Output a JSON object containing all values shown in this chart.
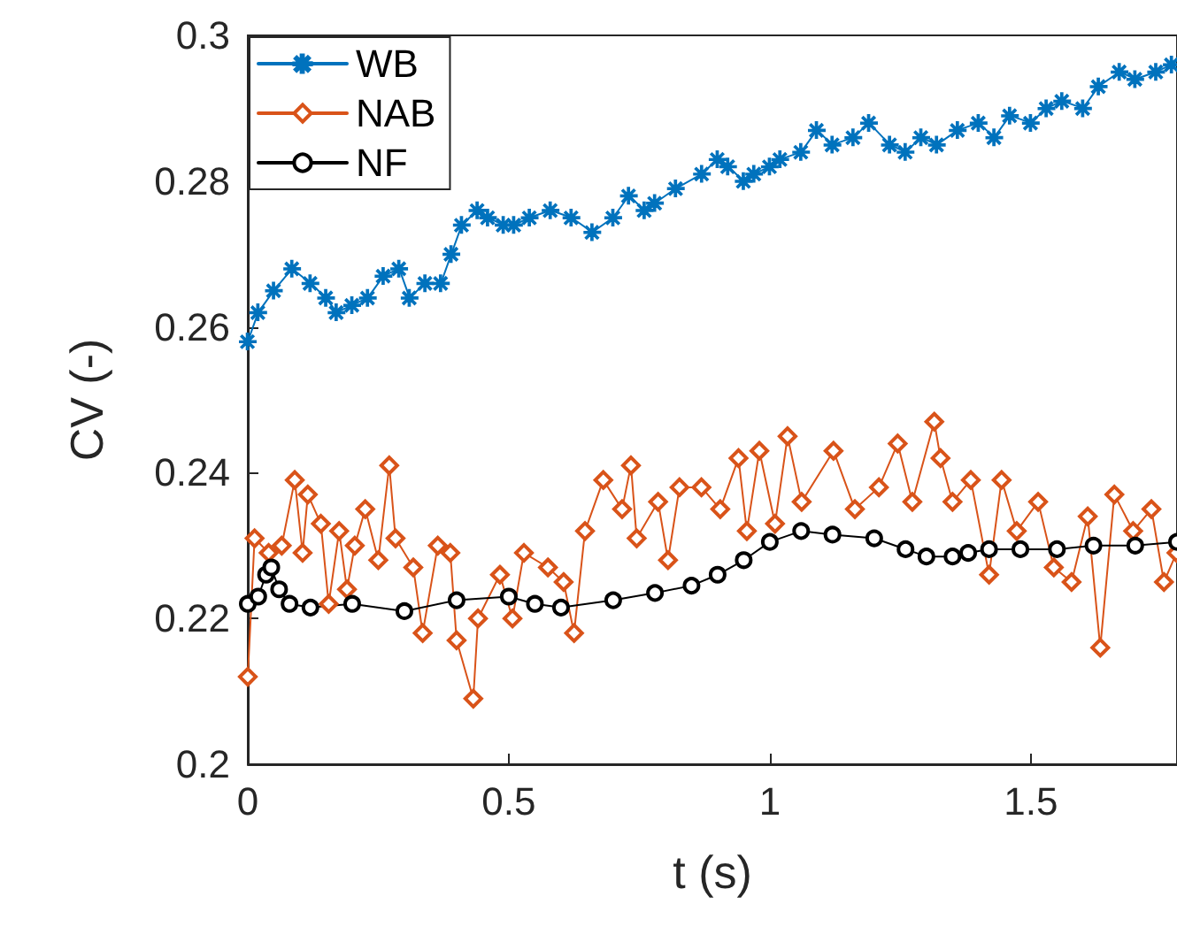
{
  "chart_data": {
    "type": "line",
    "xlabel": "t (s)",
    "ylabel": "CV (-)",
    "xlim": [
      0,
      1.78
    ],
    "xticks": [
      0,
      0.5,
      1,
      {
        "value": 1.5,
        "label": "1.5"
      }
    ],
    "ylim": [
      0.2,
      0.3
    ],
    "yticks": [
      0.2,
      0.22,
      0.24,
      0.26,
      0.28,
      0.3
    ],
    "grid": false,
    "legend": "top left",
    "line_style": "solid",
    "series": [
      {
        "name": "WB",
        "color": "#0072bd",
        "marker": "star",
        "x": [
          0,
          0.02,
          0.05,
          0.085,
          0.12,
          0.15,
          0.17,
          0.2,
          0.23,
          0.26,
          0.29,
          0.31,
          0.34,
          0.37,
          0.39,
          0.41,
          0.44,
          0.46,
          0.49,
          0.51,
          0.54,
          0.58,
          0.62,
          0.66,
          0.7,
          0.73,
          0.76,
          0.78,
          0.82,
          0.87,
          0.9,
          0.92,
          0.95,
          0.97,
          1.0,
          1.02,
          1.06,
          1.09,
          1.12,
          1.16,
          1.19,
          1.23,
          1.26,
          1.29,
          1.32,
          1.36,
          1.4,
          1.43,
          1.46,
          1.5,
          1.53,
          1.56,
          1.6,
          1.63,
          1.67,
          1.7,
          1.74,
          1.77
        ],
        "values": [
          0.258,
          0.262,
          0.265,
          0.268,
          0.266,
          0.264,
          0.262,
          0.263,
          0.264,
          0.267,
          0.268,
          0.264,
          0.266,
          0.266,
          0.27,
          0.274,
          0.276,
          0.275,
          0.274,
          0.274,
          0.275,
          0.276,
          0.275,
          0.273,
          0.275,
          0.278,
          0.276,
          0.277,
          0.279,
          0.281,
          0.283,
          0.282,
          0.28,
          0.281,
          0.282,
          0.283,
          0.284,
          0.287,
          0.285,
          0.286,
          0.288,
          0.285,
          0.284,
          0.286,
          0.285,
          0.287,
          0.288,
          0.286,
          0.289,
          0.288,
          0.29,
          0.291,
          0.29,
          0.293,
          0.295,
          0.294,
          0.295,
          0.296
        ]
      },
      {
        "name": "NAB",
        "color": "#d95319",
        "marker": "diamond",
        "x": [
          0,
          0.013,
          0.04,
          0.065,
          0.09,
          0.105,
          0.115,
          0.14,
          0.155,
          0.175,
          0.19,
          0.205,
          0.225,
          0.25,
          0.271,
          0.283,
          0.317,
          0.335,
          0.364,
          0.388,
          0.4,
          0.432,
          0.441,
          0.483,
          0.507,
          0.529,
          0.575,
          0.605,
          0.625,
          0.646,
          0.681,
          0.717,
          0.734,
          0.745,
          0.786,
          0.805,
          0.827,
          0.869,
          0.905,
          0.94,
          0.956,
          0.98,
          1.01,
          1.034,
          1.061,
          1.122,
          1.163,
          1.209,
          1.245,
          1.273,
          1.315,
          1.327,
          1.35,
          1.385,
          1.42,
          1.444,
          1.473,
          1.514,
          1.544,
          1.578,
          1.609,
          1.633,
          1.66,
          1.696,
          1.731,
          1.755,
          1.779
        ],
        "values": [
          0.212,
          0.231,
          0.229,
          0.23,
          0.239,
          0.229,
          0.237,
          0.233,
          0.222,
          0.232,
          0.224,
          0.23,
          0.235,
          0.228,
          0.241,
          0.231,
          0.227,
          0.218,
          0.23,
          0.229,
          0.217,
          0.209,
          0.22,
          0.226,
          0.22,
          0.229,
          0.227,
          0.225,
          0.218,
          0.232,
          0.239,
          0.235,
          0.241,
          0.231,
          0.236,
          0.228,
          0.238,
          0.238,
          0.235,
          0.242,
          0.232,
          0.243,
          0.233,
          0.245,
          0.236,
          0.243,
          0.235,
          0.238,
          0.244,
          0.236,
          0.247,
          0.242,
          0.236,
          0.239,
          0.226,
          0.239,
          0.232,
          0.236,
          0.227,
          0.225,
          0.234,
          0.216,
          0.237,
          0.232,
          0.235,
          0.225,
          0.229
        ]
      },
      {
        "name": "NF",
        "color": "#000000",
        "marker": "circle",
        "x": [
          0,
          0.02,
          0.035,
          0.045,
          0.06,
          0.08,
          0.12,
          0.2,
          0.3,
          0.4,
          0.5,
          0.55,
          0.6,
          0.7,
          0.78,
          0.85,
          0.9,
          0.95,
          1.0,
          1.06,
          1.12,
          1.2,
          1.26,
          1.3,
          1.35,
          1.38,
          1.42,
          1.48,
          1.55,
          1.62,
          1.7,
          1.78
        ],
        "values": [
          0.222,
          0.223,
          0.226,
          0.227,
          0.224,
          0.222,
          0.2215,
          0.222,
          0.221,
          0.2225,
          0.223,
          0.222,
          0.2215,
          0.2225,
          0.2235,
          0.2245,
          0.226,
          0.228,
          0.2305,
          0.232,
          0.2315,
          0.231,
          0.2295,
          0.2285,
          0.2285,
          0.229,
          0.2295,
          0.2295,
          0.2295,
          0.23,
          0.23,
          0.2305
        ]
      }
    ]
  }
}
